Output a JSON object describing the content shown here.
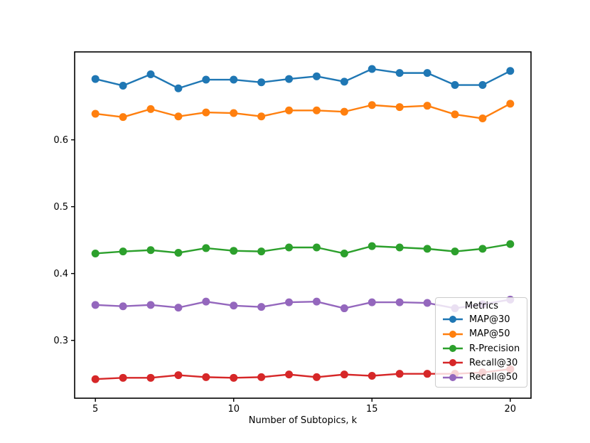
{
  "figure": {
    "background": "#ffffff"
  },
  "chart_data": {
    "type": "line",
    "title": "",
    "xlabel": "Number of Subtopics, k",
    "ylabel": "",
    "grid": false,
    "x": [
      5,
      6,
      7,
      8,
      9,
      10,
      11,
      12,
      13,
      14,
      15,
      16,
      17,
      18,
      19,
      20
    ],
    "xticks": [
      "5",
      "10",
      "15",
      "20"
    ],
    "xtick_values": [
      5,
      10,
      15,
      20
    ],
    "yticks": [
      "0.3",
      "0.4",
      "0.5",
      "0.6"
    ],
    "ytick_values": [
      0.3,
      0.4,
      0.5,
      0.6
    ],
    "xlim": [
      4.25,
      20.75
    ],
    "ylim": [
      0.2135,
      0.7315
    ],
    "legend": {
      "title": "Metrics",
      "position": "center-right",
      "border_color": "#cccccc",
      "background": "rgba(255,255,255,0.8)"
    },
    "series": [
      {
        "name": "MAP@30",
        "color": "#1f77b4",
        "values": [
          0.691,
          0.681,
          0.698,
          0.677,
          0.69,
          0.69,
          0.686,
          0.691,
          0.695,
          0.687,
          0.706,
          0.7,
          0.7,
          0.682,
          0.682,
          0.703
        ]
      },
      {
        "name": "MAP@50",
        "color": "#ff7f0e",
        "values": [
          0.639,
          0.634,
          0.646,
          0.635,
          0.641,
          0.64,
          0.635,
          0.644,
          0.644,
          0.642,
          0.652,
          0.649,
          0.651,
          0.638,
          0.632,
          0.654
        ]
      },
      {
        "name": "R-Precision",
        "color": "#2ca02c",
        "values": [
          0.43,
          0.433,
          0.435,
          0.431,
          0.438,
          0.434,
          0.433,
          0.439,
          0.439,
          0.43,
          0.441,
          0.439,
          0.437,
          0.433,
          0.437,
          0.444
        ]
      },
      {
        "name": "Recall@30",
        "color": "#d62728",
        "values": [
          0.242,
          0.244,
          0.244,
          0.248,
          0.245,
          0.244,
          0.245,
          0.249,
          0.245,
          0.249,
          0.247,
          0.25,
          0.25,
          0.25,
          0.252,
          0.257
        ]
      },
      {
        "name": "Recall@50",
        "color": "#9467bd",
        "values": [
          0.353,
          0.351,
          0.353,
          0.349,
          0.358,
          0.352,
          0.35,
          0.357,
          0.358,
          0.348,
          0.357,
          0.357,
          0.356,
          0.348,
          0.354,
          0.361
        ]
      }
    ]
  }
}
